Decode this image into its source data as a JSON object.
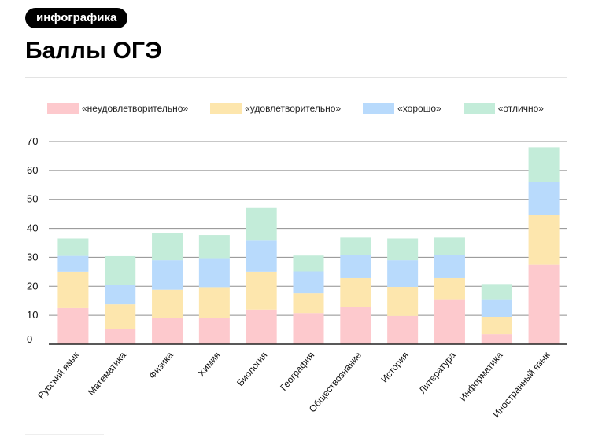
{
  "header": {
    "tag_label": "инфографика",
    "title": "Баллы ОГЭ"
  },
  "colors": {
    "neud": "#fdc9cd",
    "ud": "#fde6ad",
    "hor": "#b8dafc",
    "otl": "#c3ecd9",
    "axis": "#222222",
    "grid": "#8f8f8f"
  },
  "legend": [
    {
      "key": "neud",
      "label": "«неудовлетворительно»"
    },
    {
      "key": "ud",
      "label": "«удовлетворительно»"
    },
    {
      "key": "hor",
      "label": "«хорошо»"
    },
    {
      "key": "otl",
      "label": "«отлично»"
    }
  ],
  "chart_data": {
    "type": "bar",
    "stacked": true,
    "title": "Баллы ОГЭ",
    "xlabel": "",
    "ylabel": "",
    "ylim": [
      0,
      70
    ],
    "yticks": [
      0,
      10,
      20,
      30,
      40,
      50,
      60,
      70
    ],
    "grid": true,
    "legend_position": "top",
    "categories": [
      "Русский язык",
      "Математика",
      "Физика",
      "Химия",
      "Биология",
      "География",
      "Обществознание",
      "История",
      "Литература",
      "Информатика",
      "Иностранный язык"
    ],
    "series": [
      {
        "name": "«неудовлетворительно»",
        "key": "neud",
        "values": [
          12.5,
          5.2,
          9,
          9,
          12,
          10.8,
          13,
          9.8,
          15.3,
          3.5,
          27.5
        ]
      },
      {
        "name": "«удовлетворительно»",
        "key": "ud",
        "values": [
          12.5,
          8.6,
          9.8,
          10.7,
          13,
          6.8,
          9.8,
          10,
          7.5,
          6,
          17
        ]
      },
      {
        "name": "«хорошо»",
        "key": "hor",
        "values": [
          5.5,
          6.6,
          10.2,
          10,
          11,
          7.5,
          8,
          9.2,
          8,
          5.8,
          11.5
        ]
      },
      {
        "name": "«отлично»",
        "key": "otl",
        "values": [
          6,
          10,
          9.5,
          8,
          11,
          5.5,
          6,
          7.5,
          6,
          5.5,
          12
        ]
      }
    ]
  }
}
